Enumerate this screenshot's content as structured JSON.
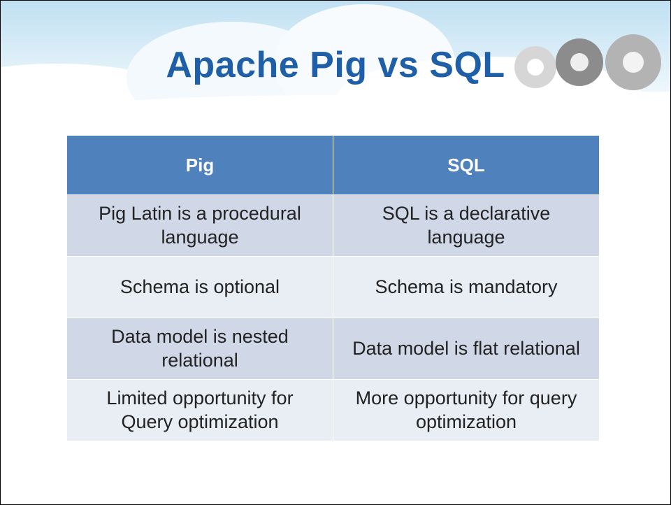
{
  "header": {
    "title": "Apache Pig vs SQL"
  },
  "table": {
    "columns": [
      "Pig",
      "SQL"
    ],
    "rows": [
      [
        "Pig Latin is a procedural language",
        "SQL is a declarative language"
      ],
      [
        "Schema is optional",
        "Schema is mandatory"
      ],
      [
        "Data model is nested relational",
        "Data model is flat relational"
      ],
      [
        "Limited opportunity for Query optimization",
        "More opportunity for query optimization"
      ]
    ]
  }
}
